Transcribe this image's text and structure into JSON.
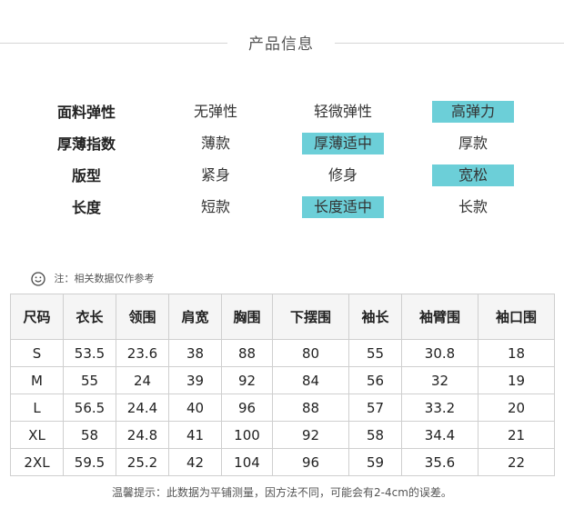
{
  "title": "产品信息",
  "attributes": [
    {
      "label": "面料弹性",
      "options": [
        "无弹性",
        "轻微弹性",
        "高弹力"
      ],
      "selected": 2
    },
    {
      "label": "厚薄指数",
      "options": [
        "薄款",
        "厚薄适中",
        "厚款"
      ],
      "selected": 1
    },
    {
      "label": "版型",
      "options": [
        "紧身",
        "修身",
        "宽松"
      ],
      "selected": 2
    },
    {
      "label": "长度",
      "options": [
        "短款",
        "长度适中",
        "长款"
      ],
      "selected": 1
    }
  ],
  "note": "注：相关数据仅作参考",
  "icons": {
    "note": "smiley-icon"
  },
  "colors": {
    "highlight": "#6ccfd8"
  },
  "size_table": {
    "headers": [
      "尺码",
      "衣长",
      "领围",
      "肩宽",
      "胸围",
      "下摆围",
      "袖长",
      "袖臂围",
      "袖口围"
    ],
    "rows": [
      [
        "S",
        "53.5",
        "23.6",
        "38",
        "88",
        "80",
        "55",
        "30.8",
        "18"
      ],
      [
        "M",
        "55",
        "24",
        "39",
        "92",
        "84",
        "56",
        "32",
        "19"
      ],
      [
        "L",
        "56.5",
        "24.4",
        "40",
        "96",
        "88",
        "57",
        "33.2",
        "20"
      ],
      [
        "XL",
        "58",
        "24.8",
        "41",
        "100",
        "92",
        "58",
        "34.4",
        "21"
      ],
      [
        "2XL",
        "59.5",
        "25.2",
        "42",
        "104",
        "96",
        "59",
        "35.6",
        "22"
      ]
    ]
  },
  "footer": "温馨提示：此数据为平铺测量，因方法不同，可能会有2-4cm的误差。"
}
